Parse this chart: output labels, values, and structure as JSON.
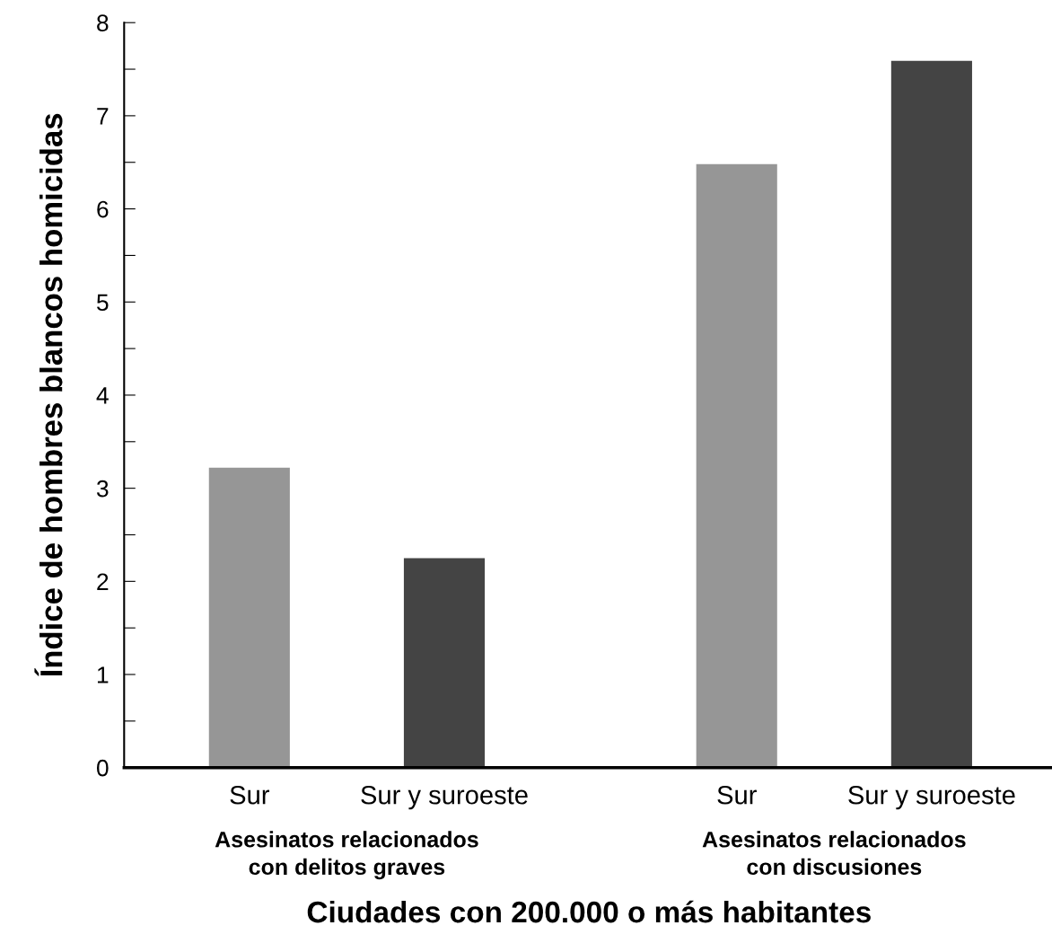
{
  "chart_data": {
    "type": "bar",
    "categories": [
      "Asesinatos relacionados\ncon delitos graves",
      "Asesinatos relacionados\ncon discusiones"
    ],
    "series": [
      {
        "name": "Sur",
        "color": "#969696",
        "values": [
          3.22,
          6.48
        ]
      },
      {
        "name": "Sur y suroeste",
        "color": "#444444",
        "values": [
          2.25,
          7.59
        ]
      }
    ],
    "xlabel": "Ciudades con 200.000 o más habitantes",
    "ylabel": "Índice de hombres blancos homicidas",
    "ylim": [
      0,
      8
    ],
    "yticks": [
      0,
      {
        "value": 0.5,
        "label": null
      },
      1,
      {
        "value": 1.5,
        "label": null
      },
      2,
      {
        "value": 2.5,
        "label": null
      },
      3,
      {
        "value": 3.5,
        "label": null
      },
      4,
      {
        "value": 4.5,
        "label": null
      },
      5,
      {
        "value": 5.5,
        "label": null
      },
      6,
      {
        "value": 6.5,
        "label": null
      },
      7,
      {
        "value": 7.5,
        "label": null
      },
      8
    ],
    "grid": false,
    "legend": false
  }
}
